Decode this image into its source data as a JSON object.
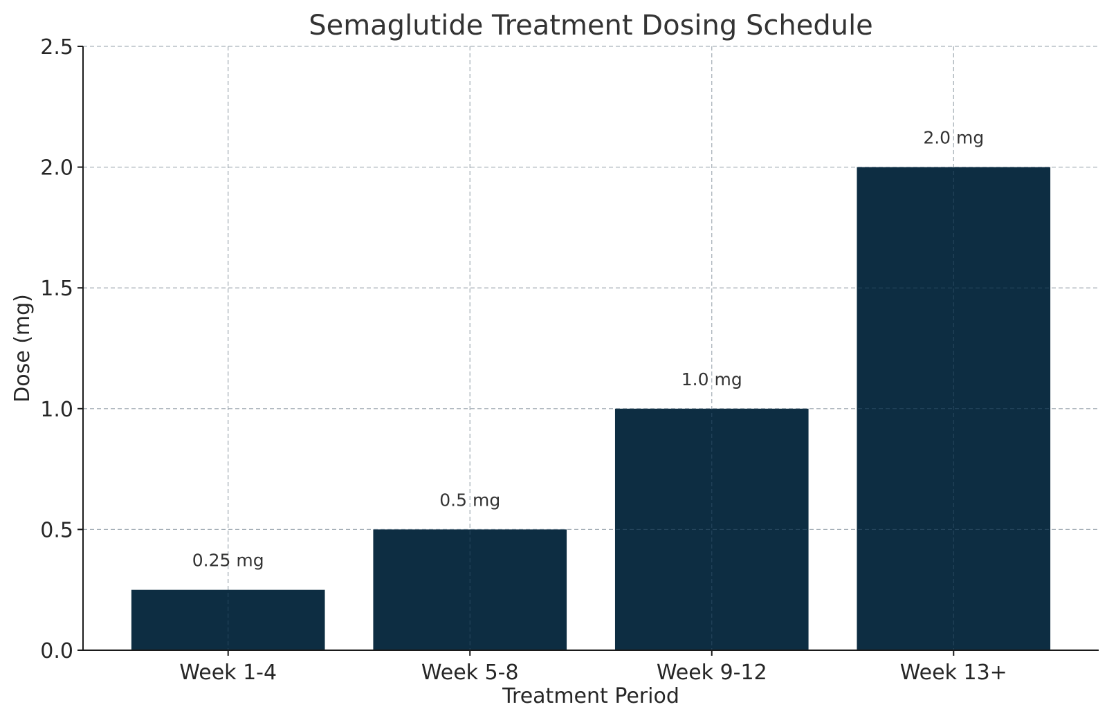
{
  "chart_data": {
    "type": "bar",
    "title": "Semaglutide Treatment Dosing Schedule",
    "xlabel": "Treatment Period",
    "ylabel": "Dose (mg)",
    "categories": [
      "Week 1-4",
      "Week 5-8",
      "Week 9-12",
      "Week 13+"
    ],
    "values": [
      0.25,
      0.5,
      1.0,
      2.0
    ],
    "data_labels": [
      "0.25 mg",
      "0.5 mg",
      "1.0 mg",
      "2.0 mg"
    ],
    "ylim": [
      0,
      2.5
    ],
    "yticks": [
      0.0,
      0.5,
      1.0,
      1.5,
      2.0,
      2.5
    ],
    "ytick_labels": [
      "0.0",
      "0.5",
      "1.0",
      "1.5",
      "2.0",
      "2.5"
    ],
    "grid": true,
    "colors": {
      "bar": "#0d2d42"
    }
  }
}
